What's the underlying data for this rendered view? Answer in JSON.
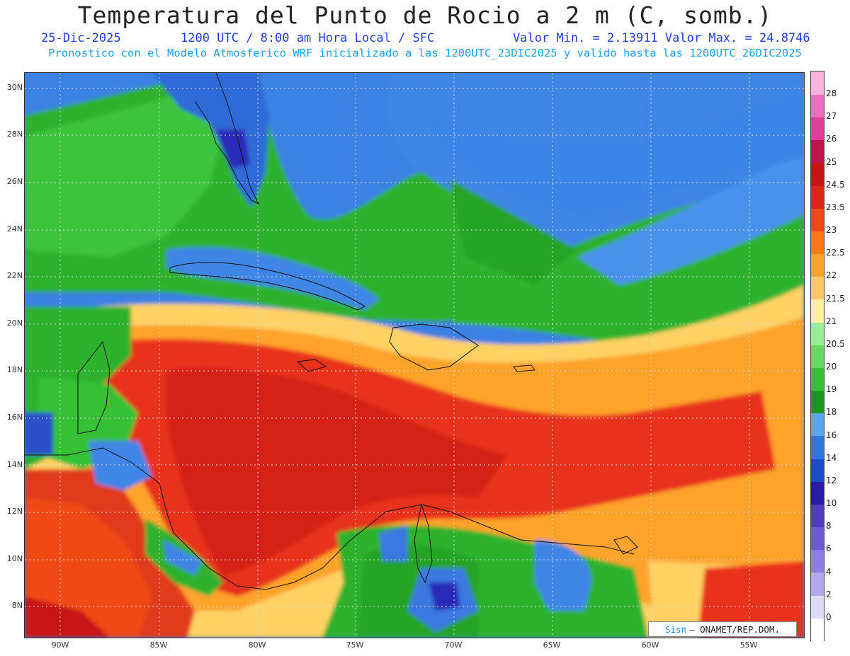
{
  "header": {
    "title": "Temperatura del Punto de Rocio a 2 m (C, somb.)",
    "date": "25-Dic-2025",
    "time": "1200 UTC / 8:00 am Hora Local / SFC",
    "minmax": "Valor Min. = 2.13911  Valor Max. = 24.8746",
    "forecast": "Pronostico con el Modelo Atmosferico WRF inicializado a las 1200UTC_23DIC2025 y valido hasta las  1200UTC_26DIC2025"
  },
  "map": {
    "lat_labels": [
      "30N",
      "28N",
      "26N",
      "24N",
      "22N",
      "20N",
      "18N",
      "16N",
      "14N",
      "12N",
      "10N",
      "8N"
    ],
    "lon_labels": [
      "90W",
      "85W",
      "80W",
      "75W",
      "70W",
      "65W",
      "60W",
      "55W"
    ],
    "grid": "dotted"
  },
  "colorbar": {
    "levels": [
      "0",
      "2",
      "4",
      "6",
      "8",
      "10",
      "12",
      "14",
      "16",
      "18",
      "19",
      "20",
      "20.5",
      "21",
      "21.5",
      "22",
      "22.5",
      "23",
      "23.5",
      "24.5",
      "25",
      "26",
      "27",
      "28"
    ],
    "colors": [
      "#ffffff",
      "#dcdcf8",
      "#b4a8f0",
      "#8a7ee6",
      "#6a5bd8",
      "#4c3cc4",
      "#2a1aa8",
      "#1a4ec8",
      "#2f78e0",
      "#5aa6f0",
      "#1a9a1a",
      "#34c134",
      "#62d962",
      "#98ee98",
      "#fff0a0",
      "#ffc864",
      "#ffa028",
      "#ff7814",
      "#f04a12",
      "#dc2812",
      "#c81414",
      "#c01450",
      "#e03c9a",
      "#f06cc0",
      "#f8b4dc"
    ]
  },
  "credit": {
    "brand": "Sisπ",
    "text": "– ONAMET/REP.DOM."
  }
}
